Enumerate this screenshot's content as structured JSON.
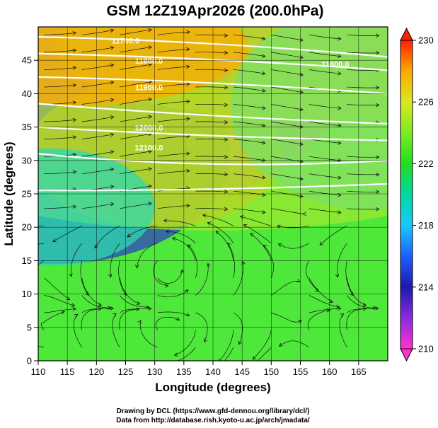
{
  "chart_data": {
    "type": "heatmap",
    "title": "GSM 12Z19Apr2026 (200.0hPa)",
    "xlabel": "Longitude (degrees)",
    "ylabel": "Latitude  (degrees)",
    "xlim": [
      110,
      170
    ],
    "ylim": [
      0,
      50
    ],
    "xticks": [
      "110",
      "115",
      "120",
      "125",
      "130",
      "135",
      "140",
      "145",
      "150",
      "155",
      "160",
      "165"
    ],
    "yticks": [
      "0",
      "5",
      "10",
      "15",
      "20",
      "25",
      "30",
      "35",
      "40",
      "45"
    ],
    "grid": true,
    "colorbar": {
      "range": [
        210,
        230
      ],
      "labels": [
        "210",
        "214",
        "218",
        "222",
        "226",
        "230"
      ]
    },
    "contour_labels": [
      "11700.0",
      "11800.0",
      "11900.0",
      "11800.0",
      "12000.0",
      "12100.0"
    ],
    "contours": [
      {
        "lat_west": 48.5,
        "lat_mid": 47.5,
        "lat_east": 45.5
      },
      {
        "lat_west": 46.0,
        "lat_mid": 45.0,
        "lat_east": 43.5
      },
      {
        "lat_west": 42.5,
        "lat_mid": 41.5,
        "lat_east": 40.0
      },
      {
        "lat_west": 38.5,
        "lat_mid": 36.0,
        "lat_east": 35.5
      },
      {
        "lat_west": 35.0,
        "lat_mid": 33.0,
        "lat_east": 33.0
      },
      {
        "lat_west": 31.0,
        "lat_mid": 28.0,
        "lat_east": 30.0
      },
      {
        "lat_west": 25.5,
        "lat_mid": 25.0,
        "lat_east": 26.5
      }
    ]
  },
  "credits": {
    "line1": "Drawing by DCL (https://www.gfd-dennou.org/library/dcl/)",
    "line2": "Data from http://database.rish.kyoto-u.ac.jp/arch/jmadata/"
  }
}
